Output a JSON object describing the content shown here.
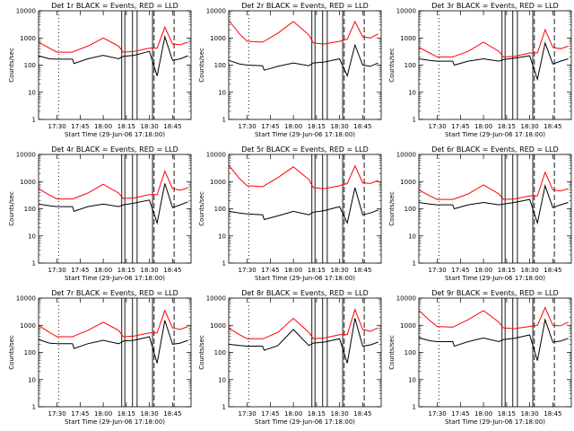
{
  "chart_data": [
    {
      "type": "line",
      "title": "Det 1r BLACK = Events, RED = LLD",
      "xlabel": "Start Time (29-Jun-06 17:18:00)",
      "ylabel": "Counts/sec",
      "y_scale": "log",
      "ylim": [
        1,
        10000
      ],
      "x": [
        "17:18",
        "17:25",
        "17:30",
        "17:40",
        "17:41",
        "17:50",
        "18:00",
        "18:10",
        "18:13",
        "18:20",
        "18:30",
        "18:35",
        "18:40",
        "18:45",
        "18:50",
        "18:55"
      ],
      "series": [
        {
          "name": "Events",
          "color": "#000000",
          "values": [
            220,
            170,
            165,
            165,
            115,
            170,
            230,
            170,
            210,
            230,
            320,
            40,
            1100,
            150,
            170,
            220
          ]
        },
        {
          "name": "LLD",
          "color": "#ff0000",
          "values": [
            700,
            420,
            300,
            300,
            320,
            500,
            1000,
            500,
            300,
            320,
            420,
            420,
            2500,
            600,
            560,
            700
          ]
        }
      ],
      "xticks": [
        "17:30",
        "17:45",
        "18:00",
        "18:15",
        "18:30",
        "18:45"
      ],
      "yticks": [
        "1",
        "10",
        "100",
        "1000",
        "10000"
      ]
    },
    {
      "type": "line",
      "title": "Det 2r BLACK = Events, RED = LLD",
      "xlabel": "Start Time (29-Jun-06 17:18:00)",
      "ylabel": "Counts/sec",
      "y_scale": "log",
      "ylim": [
        1,
        10000
      ],
      "x": [
        "17:18",
        "17:25",
        "17:30",
        "17:40",
        "17:41",
        "17:50",
        "18:00",
        "18:10",
        "18:13",
        "18:20",
        "18:30",
        "18:35",
        "18:40",
        "18:45",
        "18:50",
        "18:55"
      ],
      "series": [
        {
          "name": "Events",
          "color": "#000000",
          "values": [
            150,
            110,
            100,
            95,
            65,
            90,
            120,
            95,
            120,
            130,
            170,
            40,
            550,
            100,
            90,
            120
          ]
        },
        {
          "name": "LLD",
          "color": "#ff0000",
          "values": [
            4500,
            1400,
            750,
            700,
            750,
            1500,
            4000,
            1300,
            650,
            600,
            750,
            900,
            4000,
            1100,
            1000,
            1400
          ]
        }
      ],
      "xticks": [
        "17:30",
        "17:45",
        "18:00",
        "18:15",
        "18:30",
        "18:45"
      ],
      "yticks": [
        "1",
        "10",
        "100",
        "1000",
        "10000"
      ]
    },
    {
      "type": "line",
      "title": "Det 3r BLACK = Events, RED = LLD",
      "xlabel": "Start Time (29-Jun-06 17:18:00)",
      "ylabel": "Counts/sec",
      "y_scale": "log",
      "ylim": [
        1,
        10000
      ],
      "x": [
        "17:18",
        "17:25",
        "17:30",
        "17:40",
        "17:41",
        "17:50",
        "18:00",
        "18:10",
        "18:13",
        "18:20",
        "18:30",
        "18:35",
        "18:40",
        "18:45",
        "18:50",
        "18:55"
      ],
      "series": [
        {
          "name": "Events",
          "color": "#000000",
          "values": [
            170,
            150,
            140,
            140,
            100,
            140,
            170,
            140,
            160,
            180,
            220,
            30,
            650,
            110,
            140,
            170
          ]
        },
        {
          "name": "LLD",
          "color": "#ff0000",
          "values": [
            450,
            280,
            200,
            200,
            210,
            320,
            700,
            320,
            200,
            210,
            280,
            280,
            2000,
            450,
            400,
            500
          ]
        }
      ],
      "xticks": [
        "17:30",
        "17:45",
        "18:00",
        "18:15",
        "18:30",
        "18:45"
      ],
      "yticks": [
        "1",
        "10",
        "100",
        "1000",
        "10000"
      ]
    },
    {
      "type": "line",
      "title": "Det 4r BLACK = Events, RED = LLD",
      "xlabel": "Start Time (29-Jun-06 17:18:00)",
      "ylabel": "Counts/sec",
      "y_scale": "log",
      "ylim": [
        1,
        10000
      ],
      "x": [
        "17:18",
        "17:25",
        "17:30",
        "17:40",
        "17:41",
        "17:50",
        "18:00",
        "18:10",
        "18:13",
        "18:20",
        "18:30",
        "18:35",
        "18:40",
        "18:45",
        "18:50",
        "18:55"
      ],
      "series": [
        {
          "name": "Events",
          "color": "#000000",
          "values": [
            150,
            130,
            120,
            120,
            80,
            120,
            150,
            120,
            140,
            160,
            210,
            30,
            850,
            110,
            140,
            180
          ]
        },
        {
          "name": "LLD",
          "color": "#ff0000",
          "values": [
            550,
            320,
            230,
            230,
            240,
            380,
            800,
            380,
            240,
            250,
            330,
            330,
            2400,
            550,
            480,
            600
          ]
        }
      ],
      "xticks": [
        "17:30",
        "17:45",
        "18:00",
        "18:15",
        "18:30",
        "18:45"
      ],
      "yticks": [
        "1",
        "10",
        "100",
        "1000",
        "10000"
      ]
    },
    {
      "type": "line",
      "title": "Det 5r BLACK = Events, RED = LLD",
      "xlabel": "Start Time (29-Jun-06 17:18:00)",
      "ylabel": "Counts/sec",
      "y_scale": "log",
      "ylim": [
        1,
        10000
      ],
      "x": [
        "17:18",
        "17:25",
        "17:30",
        "17:40",
        "17:41",
        "17:50",
        "18:00",
        "18:10",
        "18:13",
        "18:20",
        "18:30",
        "18:35",
        "18:40",
        "18:45",
        "18:50",
        "18:55"
      ],
      "series": [
        {
          "name": "Events",
          "color": "#000000",
          "values": [
            80,
            70,
            65,
            60,
            40,
            55,
            80,
            60,
            75,
            85,
            120,
            30,
            600,
            60,
            70,
            90
          ]
        },
        {
          "name": "LLD",
          "color": "#ff0000",
          "values": [
            4000,
            1300,
            700,
            650,
            700,
            1400,
            3500,
            1200,
            600,
            550,
            700,
            850,
            3800,
            900,
            850,
            1100
          ]
        }
      ],
      "xticks": [
        "17:30",
        "17:45",
        "18:00",
        "18:15",
        "18:30",
        "18:45"
      ],
      "yticks": [
        "1",
        "10",
        "100",
        "1000",
        "10000"
      ]
    },
    {
      "type": "line",
      "title": "Det 6r BLACK = Events, RED = LLD",
      "xlabel": "Start Time (29-Jun-06 17:18:00)",
      "ylabel": "Counts/sec",
      "y_scale": "log",
      "ylim": [
        1,
        10000
      ],
      "x": [
        "17:18",
        "17:25",
        "17:30",
        "17:40",
        "17:41",
        "17:50",
        "18:00",
        "18:10",
        "18:13",
        "18:20",
        "18:30",
        "18:35",
        "18:40",
        "18:45",
        "18:50",
        "18:55"
      ],
      "series": [
        {
          "name": "Events",
          "color": "#000000",
          "values": [
            170,
            150,
            140,
            140,
            100,
            140,
            170,
            140,
            150,
            170,
            220,
            30,
            700,
            110,
            140,
            170
          ]
        },
        {
          "name": "LLD",
          "color": "#ff0000",
          "values": [
            500,
            300,
            220,
            220,
            230,
            350,
            750,
            350,
            220,
            230,
            300,
            300,
            2200,
            500,
            450,
            550
          ]
        }
      ],
      "xticks": [
        "17:30",
        "17:45",
        "18:00",
        "18:15",
        "18:30",
        "18:45"
      ],
      "yticks": [
        "1",
        "10",
        "100",
        "1000",
        "10000"
      ]
    },
    {
      "type": "line",
      "title": "Det 7r BLACK = Events, RED = LLD",
      "xlabel": "Start Time (29-Jun-06 17:18:00)",
      "ylabel": "Counts/sec",
      "y_scale": "log",
      "ylim": [
        1,
        10000
      ],
      "x": [
        "17:18",
        "17:25",
        "17:30",
        "17:40",
        "17:41",
        "17:50",
        "18:00",
        "18:10",
        "18:13",
        "18:20",
        "18:30",
        "18:35",
        "18:40",
        "18:45",
        "18:50",
        "18:55"
      ],
      "series": [
        {
          "name": "Events",
          "color": "#000000",
          "values": [
            300,
            220,
            210,
            210,
            140,
            210,
            280,
            210,
            260,
            280,
            380,
            40,
            1500,
            200,
            220,
            280
          ]
        },
        {
          "name": "LLD",
          "color": "#ff0000",
          "values": [
            1000,
            550,
            380,
            380,
            400,
            650,
            1300,
            650,
            380,
            400,
            520,
            520,
            3500,
            800,
            700,
            900
          ]
        }
      ],
      "xticks": [
        "17:30",
        "17:45",
        "18:00",
        "18:15",
        "18:30",
        "18:45"
      ],
      "yticks": [
        "1",
        "10",
        "100",
        "1000",
        "10000"
      ]
    },
    {
      "type": "line",
      "title": "Det 8r BLACK = Events, RED = LLD",
      "xlabel": "Start Time (29-Jun-06 17:18:00)",
      "ylabel": "Counts/sec",
      "y_scale": "log",
      "ylim": [
        1,
        10000
      ],
      "x": [
        "17:18",
        "17:25",
        "17:30",
        "17:40",
        "17:41",
        "17:50",
        "18:00",
        "18:10",
        "18:13",
        "18:20",
        "18:30",
        "18:35",
        "18:40",
        "18:45",
        "18:50",
        "18:55"
      ],
      "series": [
        {
          "name": "Events",
          "color": "#000000",
          "values": [
            200,
            180,
            170,
            170,
            120,
            180,
            700,
            180,
            220,
            240,
            320,
            40,
            1800,
            170,
            190,
            240
          ]
        },
        {
          "name": "LLD",
          "color": "#ff0000",
          "values": [
            800,
            450,
            320,
            320,
            330,
            550,
            1800,
            550,
            320,
            340,
            450,
            450,
            3800,
            700,
            600,
            800
          ]
        }
      ],
      "xticks": [
        "17:30",
        "17:45",
        "18:00",
        "18:15",
        "18:30",
        "18:45"
      ],
      "yticks": [
        "1",
        "10",
        "100",
        "1000",
        "10000"
      ]
    },
    {
      "type": "line",
      "title": "Det 9r BLACK = Events, RED = LLD",
      "xlabel": "Start Time (29-Jun-06 17:18:00)",
      "ylabel": "Counts/sec",
      "y_scale": "log",
      "ylim": [
        1,
        10000
      ],
      "x": [
        "17:18",
        "17:25",
        "17:30",
        "17:40",
        "17:41",
        "17:50",
        "18:00",
        "18:10",
        "18:13",
        "18:20",
        "18:30",
        "18:35",
        "18:40",
        "18:45",
        "18:50",
        "18:55"
      ],
      "series": [
        {
          "name": "Events",
          "color": "#000000",
          "values": [
            350,
            270,
            250,
            250,
            170,
            250,
            340,
            250,
            300,
            330,
            440,
            50,
            1600,
            240,
            260,
            330
          ]
        },
        {
          "name": "LLD",
          "color": "#ff0000",
          "values": [
            3500,
            1500,
            900,
            850,
            900,
            1600,
            3500,
            1300,
            800,
            750,
            900,
            1000,
            4500,
            1000,
            950,
            1300
          ]
        }
      ],
      "xticks": [
        "17:30",
        "17:45",
        "18:00",
        "18:15",
        "18:30",
        "18:45"
      ],
      "yticks": [
        "1",
        "10",
        "100",
        "1000",
        "10000"
      ]
    }
  ]
}
